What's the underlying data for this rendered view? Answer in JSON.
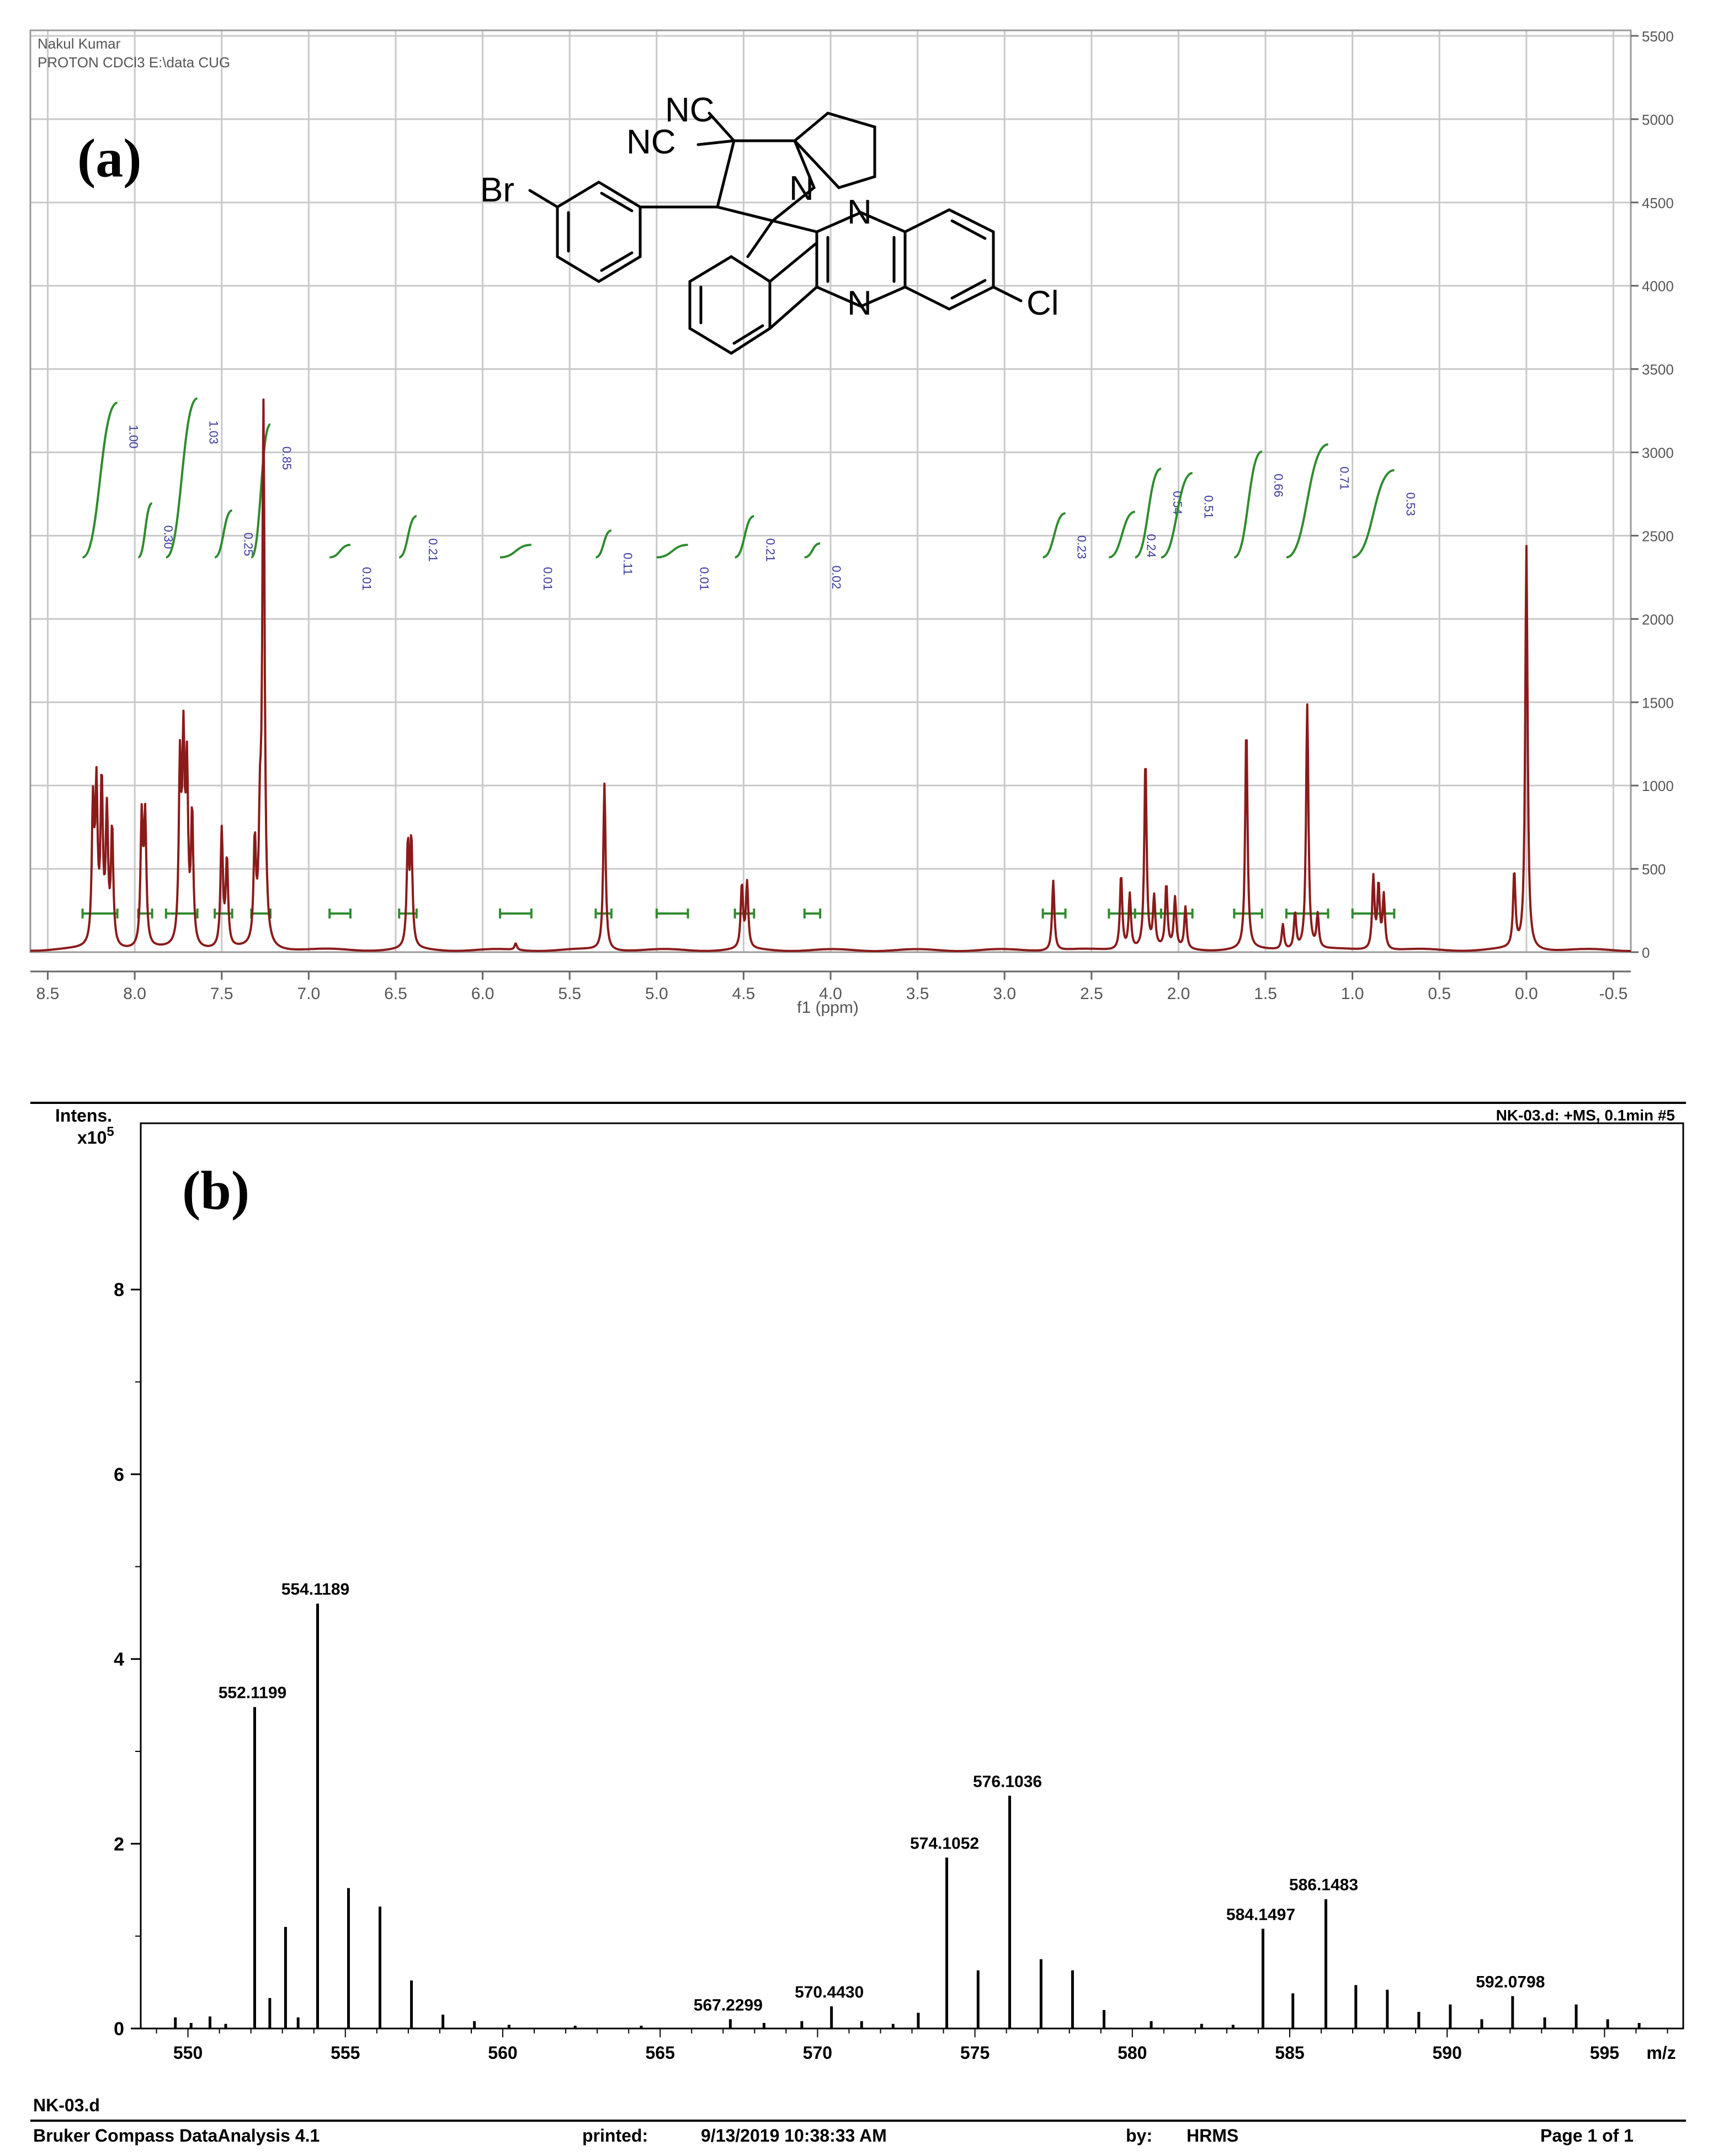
{
  "panel_a": {
    "label": "(a)",
    "header_line1": "Nakul Kumar",
    "header_line2": "PROTON CDCl3 E:\\data CUG",
    "structure_labels": {
      "nc_top": "NC",
      "nc_left": "NC",
      "br": "Br",
      "n_ring": "N",
      "n_top": "N",
      "n_bottom": "N",
      "cl": "Cl"
    }
  },
  "panel_b": {
    "label": "(b)",
    "y_label": "Intens.",
    "y_multiplier": "x10",
    "y_multiplier_exp": "5",
    "top_right": "NK-03.d: +MS, 0.1min #5",
    "footer_left_top": "NK-03.d",
    "footer_software": "Bruker Compass DataAnalysis 4.1",
    "footer_printed_label": "printed:",
    "footer_printed_value": "9/13/2019 10:38:33 AM",
    "footer_by_label": "by:",
    "footer_by_value": "HRMS",
    "footer_page": "Page 1 of 1"
  },
  "colors": {
    "nmr_line": "#8b1a1a",
    "integral": "#2e8b2e",
    "integral_text": "#3a3aa0",
    "grid": "#c9c9c9",
    "ms_line": "#000000"
  },
  "chart_data": [
    {
      "type": "line",
      "xlabel": "f1 (ppm)",
      "xlim": [
        8.6,
        -0.6
      ],
      "x_ticks": [
        8.5,
        8.0,
        7.5,
        7.0,
        6.5,
        6.0,
        5.5,
        5.0,
        4.5,
        4.0,
        3.5,
        3.0,
        2.5,
        2.0,
        1.5,
        1.0,
        0.5,
        0.0,
        -0.5
      ],
      "ylim": [
        0,
        5500
      ],
      "y_ticks": [
        0,
        500,
        1000,
        1500,
        2000,
        2500,
        3000,
        3500,
        4000,
        4500,
        5000,
        5500
      ],
      "y_axis_side": "right",
      "grid": true,
      "peaks": [
        {
          "x": 8.24,
          "y": 820
        },
        {
          "x": 8.22,
          "y": 900
        },
        {
          "x": 8.19,
          "y": 960
        },
        {
          "x": 8.16,
          "y": 780
        },
        {
          "x": 8.13,
          "y": 700
        },
        {
          "x": 7.96,
          "y": 760
        },
        {
          "x": 7.94,
          "y": 760
        },
        {
          "x": 7.74,
          "y": 1050
        },
        {
          "x": 7.72,
          "y": 1130
        },
        {
          "x": 7.7,
          "y": 1000
        },
        {
          "x": 7.67,
          "y": 780
        },
        {
          "x": 7.5,
          "y": 700
        },
        {
          "x": 7.47,
          "y": 520
        },
        {
          "x": 7.31,
          "y": 600
        },
        {
          "x": 7.28,
          "y": 620
        },
        {
          "x": 7.26,
          "y": 3200
        },
        {
          "x": 6.43,
          "y": 600
        },
        {
          "x": 6.41,
          "y": 620
        },
        {
          "x": 5.81,
          "y": 40
        },
        {
          "x": 5.3,
          "y": 1000
        },
        {
          "x": 4.51,
          "y": 380
        },
        {
          "x": 4.48,
          "y": 390
        },
        {
          "x": 2.72,
          "y": 420
        },
        {
          "x": 2.33,
          "y": 450
        },
        {
          "x": 2.28,
          "y": 330
        },
        {
          "x": 2.19,
          "y": 1140
        },
        {
          "x": 2.14,
          "y": 300
        },
        {
          "x": 2.07,
          "y": 380
        },
        {
          "x": 2.02,
          "y": 300
        },
        {
          "x": 1.96,
          "y": 250
        },
        {
          "x": 1.61,
          "y": 1330
        },
        {
          "x": 1.4,
          "y": 150
        },
        {
          "x": 1.33,
          "y": 220
        },
        {
          "x": 1.26,
          "y": 1470
        },
        {
          "x": 1.2,
          "y": 200
        },
        {
          "x": 0.88,
          "y": 430
        },
        {
          "x": 0.85,
          "y": 380
        },
        {
          "x": 0.82,
          "y": 320
        },
        {
          "x": 0.07,
          "y": 450
        },
        {
          "x": 0.0,
          "y": 2420
        }
      ],
      "integrals": [
        {
          "from": 8.3,
          "to": 8.1,
          "value": "1.00"
        },
        {
          "from": 7.98,
          "to": 7.9,
          "value": "0.30"
        },
        {
          "from": 7.82,
          "to": 7.64,
          "value": "1.03"
        },
        {
          "from": 7.54,
          "to": 7.44,
          "value": "0.25"
        },
        {
          "from": 7.33,
          "to": 7.22,
          "value": "0.85"
        },
        {
          "from": 6.88,
          "to": 6.76,
          "value": "0.01"
        },
        {
          "from": 6.48,
          "to": 6.38,
          "value": "0.21"
        },
        {
          "from": 5.9,
          "to": 5.72,
          "value": "0.01"
        },
        {
          "from": 5.35,
          "to": 5.26,
          "value": "0.11"
        },
        {
          "from": 5.0,
          "to": 4.82,
          "value": "0.01"
        },
        {
          "from": 4.55,
          "to": 4.44,
          "value": "0.21"
        },
        {
          "from": 4.15,
          "to": 4.06,
          "value": "0.02"
        },
        {
          "from": 2.78,
          "to": 2.65,
          "value": "0.23"
        },
        {
          "from": 2.4,
          "to": 2.25,
          "value": "0.24"
        },
        {
          "from": 2.25,
          "to": 2.1,
          "value": "0.54"
        },
        {
          "from": 2.1,
          "to": 1.92,
          "value": "0.51"
        },
        {
          "from": 1.68,
          "to": 1.52,
          "value": "0.66"
        },
        {
          "from": 1.38,
          "to": 1.14,
          "value": "0.71"
        },
        {
          "from": 1.0,
          "to": 0.76,
          "value": "0.53"
        }
      ]
    },
    {
      "type": "bar",
      "xlabel": "m/z",
      "xlim": [
        548.5,
        597.5
      ],
      "x_ticks": [
        550,
        555,
        560,
        565,
        570,
        575,
        580,
        585,
        590,
        595
      ],
      "ylim": [
        0,
        9.8
      ],
      "y_ticks": [
        0,
        2,
        4,
        6,
        8
      ],
      "grid": false,
      "peaks": [
        {
          "x": 549.6,
          "y": 0.12
        },
        {
          "x": 550.1,
          "y": 0.06
        },
        {
          "x": 550.7,
          "y": 0.13
        },
        {
          "x": 551.2,
          "y": 0.05
        },
        {
          "x": 552.1199,
          "y": 3.48,
          "label": "552.1199"
        },
        {
          "x": 552.6,
          "y": 0.33
        },
        {
          "x": 553.1,
          "y": 1.1
        },
        {
          "x": 553.5,
          "y": 0.12
        },
        {
          "x": 554.1189,
          "y": 4.6,
          "label": "554.1189"
        },
        {
          "x": 555.1,
          "y": 1.52
        },
        {
          "x": 556.1,
          "y": 1.32
        },
        {
          "x": 557.1,
          "y": 0.52
        },
        {
          "x": 558.1,
          "y": 0.15
        },
        {
          "x": 559.1,
          "y": 0.08
        },
        {
          "x": 560.2,
          "y": 0.04
        },
        {
          "x": 562.3,
          "y": 0.03
        },
        {
          "x": 564.4,
          "y": 0.03
        },
        {
          "x": 567.2299,
          "y": 0.1,
          "label": "567.2299"
        },
        {
          "x": 568.3,
          "y": 0.06
        },
        {
          "x": 569.5,
          "y": 0.08
        },
        {
          "x": 570.443,
          "y": 0.24,
          "label": "570.4430"
        },
        {
          "x": 571.4,
          "y": 0.08
        },
        {
          "x": 572.4,
          "y": 0.05
        },
        {
          "x": 573.2,
          "y": 0.17
        },
        {
          "x": 574.1052,
          "y": 1.85,
          "label": "574.1052"
        },
        {
          "x": 575.1,
          "y": 0.63
        },
        {
          "x": 576.1036,
          "y": 2.52,
          "label": "576.1036"
        },
        {
          "x": 577.1,
          "y": 0.75
        },
        {
          "x": 578.1,
          "y": 0.63
        },
        {
          "x": 579.1,
          "y": 0.2
        },
        {
          "x": 580.6,
          "y": 0.08
        },
        {
          "x": 582.2,
          "y": 0.05
        },
        {
          "x": 583.2,
          "y": 0.04
        },
        {
          "x": 584.1497,
          "y": 1.08,
          "label": "584.1497"
        },
        {
          "x": 585.1,
          "y": 0.38
        },
        {
          "x": 586.1483,
          "y": 1.4,
          "label": "586.1483"
        },
        {
          "x": 587.1,
          "y": 0.47
        },
        {
          "x": 588.1,
          "y": 0.42
        },
        {
          "x": 589.1,
          "y": 0.18
        },
        {
          "x": 590.1,
          "y": 0.26
        },
        {
          "x": 591.1,
          "y": 0.1
        },
        {
          "x": 592.0798,
          "y": 0.35,
          "label": "592.0798"
        },
        {
          "x": 593.1,
          "y": 0.12
        },
        {
          "x": 594.1,
          "y": 0.26
        },
        {
          "x": 595.1,
          "y": 0.1
        },
        {
          "x": 596.1,
          "y": 0.06
        }
      ]
    }
  ]
}
